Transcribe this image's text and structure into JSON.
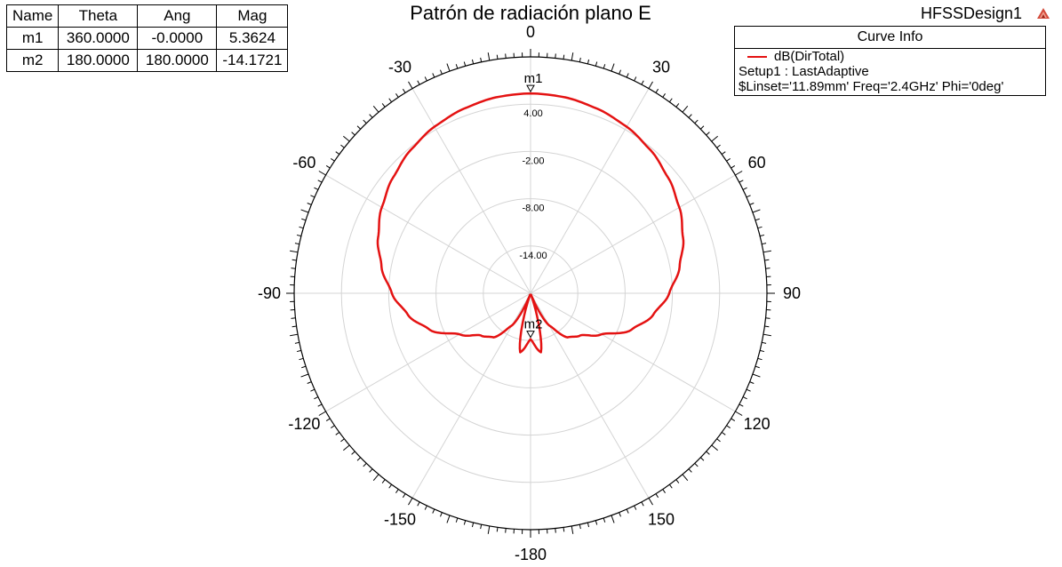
{
  "design_name": "HFSSDesign1",
  "marker_table": {
    "headers": [
      "Name",
      "Theta",
      "Ang",
      "Mag"
    ],
    "rows": [
      {
        "name": "m1",
        "theta": "360.0000",
        "ang": "-0.0000",
        "mag": "5.3624"
      },
      {
        "name": "m2",
        "theta": "180.0000",
        "ang": "180.0000",
        "mag": "-14.1721"
      }
    ]
  },
  "curve_info": {
    "header": "Curve Info",
    "trace_name": "dB(DirTotal)",
    "setup": "Setup1 : LastAdaptive",
    "variables": "$Linset='11.89mm' Freq='2.4GHz' Phi='0deg'",
    "color": "#e41212"
  },
  "chart_data": {
    "type": "polar",
    "title": "Patrón de radiación plano E",
    "angle_tick_labels": [
      "0",
      "30",
      "60",
      "90",
      "120",
      "150",
      "-180",
      "-150",
      "-120",
      "-90",
      "-60",
      "-30"
    ],
    "angle_ticks_deg": [
      0,
      30,
      60,
      90,
      120,
      150,
      180,
      210,
      240,
      270,
      300,
      330
    ],
    "radial_range": [
      -20,
      10
    ],
    "radial_rings": [
      -14,
      -8,
      -2,
      4
    ],
    "radial_tick_labels": [
      "-14.00",
      "-8.00",
      "-2.00",
      "4.00"
    ],
    "series": [
      {
        "name": "dB(DirTotal)",
        "color": "#e41212",
        "theta": [
          0,
          10,
          20,
          30,
          40,
          50,
          60,
          70,
          80,
          90,
          100,
          110,
          120,
          130,
          140,
          150,
          160,
          170,
          180
        ],
        "values": [
          5.36,
          5.25,
          4.9,
          4.4,
          3.7,
          2.8,
          1.8,
          0.6,
          -0.8,
          -2.4,
          -4.2,
          -6.4,
          -9.6,
          -11.7,
          -12.7,
          -15.3,
          -19.8,
          -12.4,
          -14.17
        ]
      }
    ],
    "markers": [
      {
        "name": "m1",
        "theta": 360,
        "value": 5.3624
      },
      {
        "name": "m2",
        "theta": 180,
        "value": -14.1721
      }
    ]
  }
}
